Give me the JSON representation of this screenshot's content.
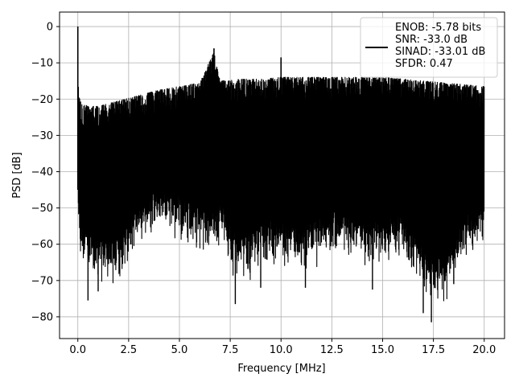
{
  "chart_data": {
    "type": "line",
    "title": "",
    "xlabel": "Frequency [MHz]",
    "ylabel": "PSD [dB]",
    "xlim": [
      -0.9,
      21.0
    ],
    "ylim": [
      -86,
      4
    ],
    "xticks": [
      0.0,
      2.5,
      5.0,
      7.5,
      10.0,
      12.5,
      15.0,
      17.5,
      20.0
    ],
    "xtick_labels": [
      "0.0",
      "2.5",
      "5.0",
      "7.5",
      "10.0",
      "12.5",
      "15.0",
      "17.5",
      "20.0"
    ],
    "yticks": [
      0,
      -10,
      -20,
      -30,
      -40,
      -50,
      -60,
      -70,
      -80
    ],
    "ytick_labels": [
      "0",
      "−10",
      "−20",
      "−30",
      "−40",
      "−50",
      "−60",
      "−70",
      "−80"
    ],
    "grid": true,
    "legend_position": "top-right",
    "line_color": "#000000",
    "series": [
      {
        "legend_lines": [
          "ENOB: -5.78 bits",
          "SNR: -33.0 dB",
          "SINAD: -33.01 dB",
          "SFDR: 0.47"
        ],
        "color": "#000000",
        "x": [
          0.0,
          0.02,
          0.05,
          0.1,
          0.2,
          0.5,
          1.0,
          2.0,
          3.0,
          4.0,
          5.0,
          6.0,
          6.7,
          7.0,
          8.0,
          9.0,
          10.0,
          11.0,
          12.0,
          13.0,
          14.0,
          15.0,
          16.0,
          17.0,
          18.0,
          19.0,
          20.0
        ],
        "envelope_upper": [
          0.0,
          -15.0,
          -17.0,
          -19.0,
          -20.0,
          -21.0,
          -21.0,
          -19.5,
          -18.0,
          -16.5,
          -15.5,
          -14.5,
          -6.0,
          -14.0,
          -13.5,
          -13.5,
          -13.0,
          -13.0,
          -13.0,
          -13.0,
          -13.0,
          -13.0,
          -13.5,
          -14.0,
          -14.5,
          -15.0,
          -15.5
        ],
        "envelope_lower": [
          -35.0,
          -55.0,
          -62.0,
          -68.0,
          -71.0,
          -73.0,
          -75.0,
          -76.0,
          -66.0,
          -63.0,
          -64.0,
          -67.0,
          -68.0,
          -66.0,
          -76.5,
          -72.0,
          -71.0,
          -72.0,
          -70.0,
          -68.0,
          -72.0,
          -71.0,
          -70.0,
          -79.0,
          -82.0,
          -70.0,
          -67.0
        ],
        "peaks": [
          {
            "x": 0.0,
            "y": 0.0
          },
          {
            "x": 6.7,
            "y": -6.0
          },
          {
            "x": 10.0,
            "y": -8.5
          }
        ],
        "dips": [
          {
            "x": 0.5,
            "y": -75.5
          },
          {
            "x": 1.0,
            "y": -73.0
          },
          {
            "x": 7.75,
            "y": -76.5
          },
          {
            "x": 9.0,
            "y": -72.0
          },
          {
            "x": 11.2,
            "y": -72.0
          },
          {
            "x": 14.5,
            "y": -72.5
          },
          {
            "x": 17.0,
            "y": -79.0
          },
          {
            "x": 17.4,
            "y": -81.5
          },
          {
            "x": 18.5,
            "y": -71.0
          }
        ],
        "noise_seed": 12345
      }
    ]
  }
}
